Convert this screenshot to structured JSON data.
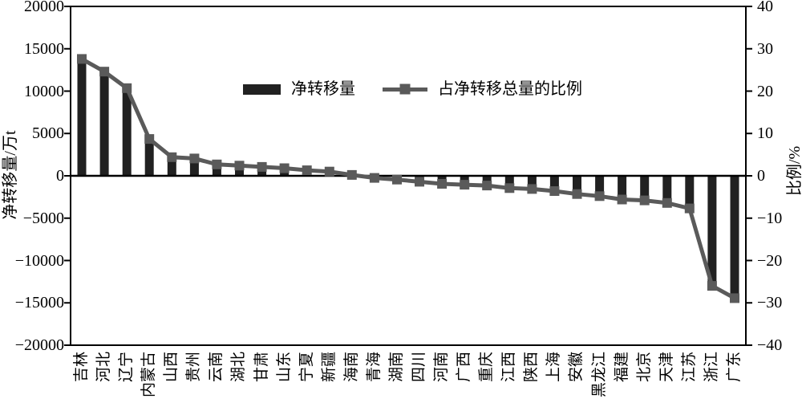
{
  "colors": {
    "bar": "#212121",
    "line": "#5a5a5a",
    "axis": "#000000",
    "background": "#ffffff"
  },
  "axes": {
    "left_title": "净转移量/万t",
    "right_title": "比例/%"
  },
  "legend": {
    "bar_label": "净转移量",
    "line_label": "占净转移总量的比例"
  },
  "chart_data": {
    "type": "bar",
    "subtype": "bar+line dual-axis",
    "title": "",
    "xlabel": "",
    "grid": false,
    "legend_position": "inside-top-center",
    "categories": [
      "吉林",
      "河北",
      "辽宁",
      "内蒙古",
      "山西",
      "贵州",
      "云南",
      "湖北",
      "甘肃",
      "山东",
      "宁夏",
      "新疆",
      "海南",
      "青海",
      "湖南",
      "四川",
      "河南",
      "广西",
      "重庆",
      "江西",
      "陕西",
      "上海",
      "安徽",
      "黑龙江",
      "福建",
      "北京",
      "天津",
      "江苏",
      "浙江",
      "广东"
    ],
    "series": [
      {
        "name": "净转移量",
        "type": "bar",
        "axis": "left",
        "color": "#212121",
        "values": [
          13400,
          11900,
          10000,
          4200,
          2150,
          2000,
          1300,
          1150,
          1000,
          880,
          650,
          500,
          80,
          -220,
          -450,
          -700,
          -900,
          -1000,
          -1100,
          -1400,
          -1520,
          -1750,
          -2100,
          -2350,
          -2700,
          -2800,
          -3100,
          -3750,
          -12600,
          -14000
        ]
      },
      {
        "name": "占净转移总量的比例",
        "type": "line",
        "axis": "right",
        "color": "#5a5a5a",
        "marker": "square",
        "values": [
          27.6,
          24.6,
          20.7,
          8.7,
          4.4,
          4.1,
          2.7,
          2.4,
          2.1,
          1.8,
          1.3,
          1.0,
          0.2,
          -0.5,
          -0.9,
          -1.4,
          -1.9,
          -2.1,
          -2.3,
          -2.9,
          -3.1,
          -3.6,
          -4.3,
          -4.8,
          -5.6,
          -5.8,
          -6.4,
          -7.7,
          -26.0,
          -28.9
        ]
      }
    ],
    "left_axis": {
      "title": "净转移量/万t",
      "min": -20000,
      "max": 20000,
      "step": 5000
    },
    "right_axis": {
      "title": "比例/%",
      "min": -40,
      "max": 40,
      "step": 10
    }
  }
}
